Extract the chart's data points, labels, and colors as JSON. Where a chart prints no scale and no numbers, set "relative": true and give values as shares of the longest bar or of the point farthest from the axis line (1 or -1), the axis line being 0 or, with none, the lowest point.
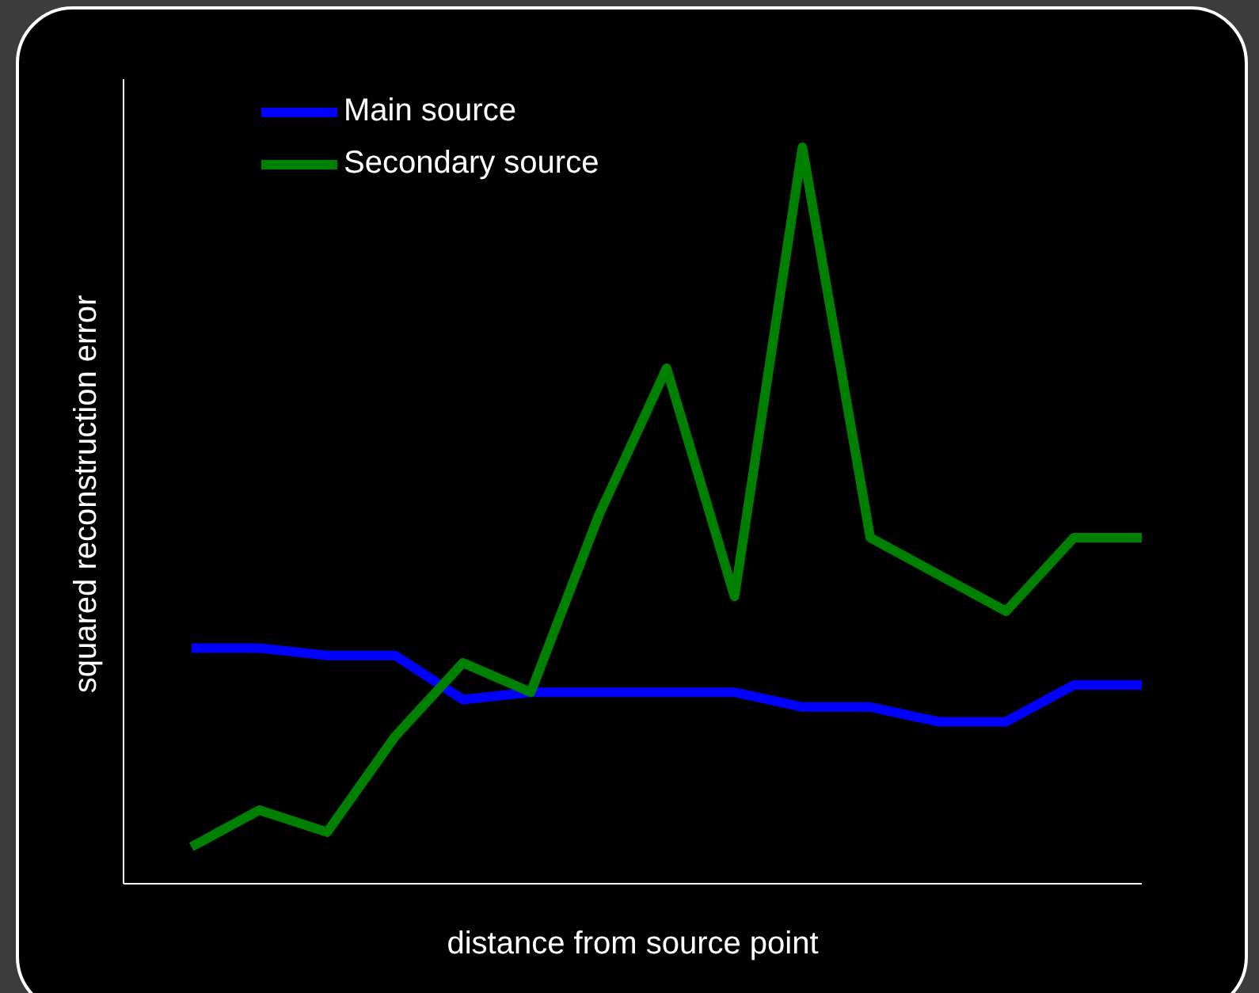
{
  "chart_data": {
    "type": "line",
    "relative": true,
    "xlabel": "distance from source point",
    "ylabel": "squared reconstruction error",
    "legend": "top left",
    "marker": "none",
    "line_style": "solid",
    "grid": false,
    "categories": [
      null,
      null,
      null,
      null,
      null,
      null,
      null,
      null,
      null,
      null,
      null,
      null,
      null,
      null,
      null
    ],
    "series": [
      {
        "name": "Main source",
        "color": "#0000ff",
        "values": [
          0.32,
          0.32,
          0.31,
          0.31,
          0.25,
          0.26,
          0.26,
          0.26,
          0.26,
          0.24,
          0.24,
          0.22,
          0.22,
          0.27,
          0.27
        ]
      },
      {
        "name": "Secondary source",
        "color": "#008000",
        "values": [
          0.05,
          0.1,
          0.07,
          0.2,
          0.3,
          0.26,
          0.5,
          0.7,
          0.39,
          1,
          0.47,
          0.42,
          0.37,
          0.47,
          0.47
        ]
      }
    ]
  }
}
